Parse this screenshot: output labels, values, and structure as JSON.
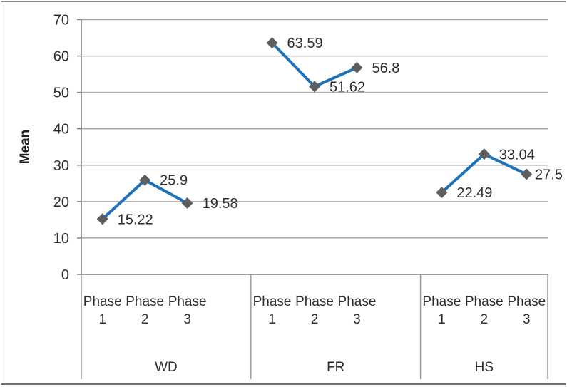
{
  "chart_data": {
    "type": "line",
    "ylabel": "Mean",
    "ylim": [
      0,
      70
    ],
    "yticks": [
      0,
      10,
      20,
      30,
      40,
      50,
      60,
      70
    ],
    "grid": true,
    "legend": "none",
    "categories_per_group": [
      "Phase 1",
      "Phase 2",
      "Phase 3"
    ],
    "groups": [
      {
        "label": "WD",
        "values": [
          15.22,
          25.9,
          19.58
        ],
        "value_labels": [
          "15.22",
          "25.9",
          "19.58"
        ]
      },
      {
        "label": "FR",
        "values": [
          63.59,
          51.62,
          56.8
        ],
        "value_labels": [
          "63.59",
          "51.62",
          "56.8"
        ]
      },
      {
        "label": "HS",
        "values": [
          22.49,
          33.04,
          27.5
        ],
        "value_labels": [
          "22.49",
          "33.04",
          "27.5"
        ]
      }
    ],
    "colors": {
      "line": "#1E72BA",
      "marker": "#5E5E5E",
      "gridline": "#A6A6A6",
      "axis": "#7F7F7F",
      "separator": "#9A9A9A",
      "text": "#2E2E2E"
    }
  }
}
